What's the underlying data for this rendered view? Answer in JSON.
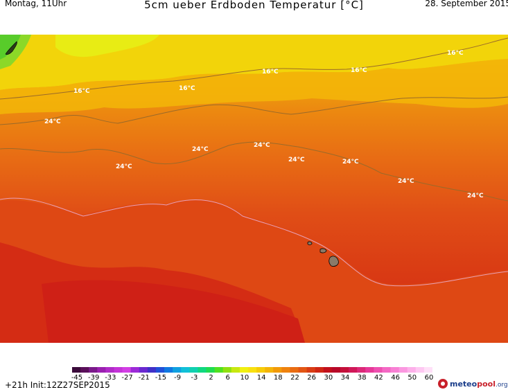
{
  "header": {
    "left": "Montag, 11Uhr",
    "title": "5cm ueber Erdboden Temperatur [°C]",
    "right": "28. September 2015"
  },
  "map": {
    "isotherm_labels": [
      {
        "text": "16°C"
      },
      {
        "text": "16°C"
      },
      {
        "text": "16°C"
      },
      {
        "text": "16°C"
      },
      {
        "text": "16°C"
      },
      {
        "text": "24°C"
      },
      {
        "text": "24°C"
      },
      {
        "text": "24°C"
      },
      {
        "text": "24°C"
      },
      {
        "text": "24°C"
      },
      {
        "text": "24°C"
      },
      {
        "text": "24°C"
      },
      {
        "text": "24°C"
      }
    ]
  },
  "color_scale": {
    "ticks": [
      "-45",
      "-39",
      "-33",
      "-27",
      "-21",
      "-15",
      "-9",
      "-3",
      "2",
      "6",
      "10",
      "14",
      "18",
      "22",
      "26",
      "30",
      "34",
      "38",
      "42",
      "46",
      "50",
      "60"
    ],
    "colors": [
      "#3b0b3b",
      "#5a0f5a",
      "#7a1a8a",
      "#9a20b0",
      "#b02bc8",
      "#c433d8",
      "#d23ee4",
      "#9c2ad8",
      "#6a28d0",
      "#4030c8",
      "#2050d8",
      "#1078e0",
      "#10a0e0",
      "#10c0d8",
      "#10d0b0",
      "#10d880",
      "#20dc50",
      "#50e020",
      "#90e010",
      "#c8e810",
      "#f0f010",
      "#f8e010",
      "#f6cc08",
      "#f4b408",
      "#f29a08",
      "#ef820e",
      "#e96c12",
      "#e25614",
      "#d93c14",
      "#cf2614",
      "#c2101c",
      "#b80828",
      "#c4103a",
      "#d01858",
      "#dc2878",
      "#e63898",
      "#ee50b0",
      "#f468c4",
      "#f880d4",
      "#fb98e0",
      "#fdb0ea",
      "#fec8f2",
      "#ffe0f8"
    ]
  },
  "footer": {
    "run": "+21h Init:12Z27SEP2015"
  },
  "logo": {
    "brand_a": "meteo",
    "brand_b": "pool",
    "tld": ".org"
  }
}
